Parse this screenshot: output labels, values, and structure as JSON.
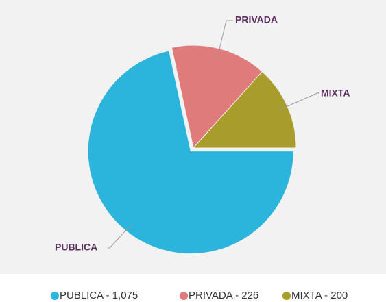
{
  "chart_data": {
    "type": "pie",
    "categories": [
      "PUBLICA",
      "PRIVADA",
      "MIXTA"
    ],
    "values": [
      1075,
      226,
      200
    ],
    "colors": [
      "#2bb5dd",
      "#e07b7b",
      "#a89c2a"
    ],
    "legend": [
      "PUBLICA - 1,075",
      "PRIVADA - 226",
      "MIXTA - 200"
    ]
  }
}
